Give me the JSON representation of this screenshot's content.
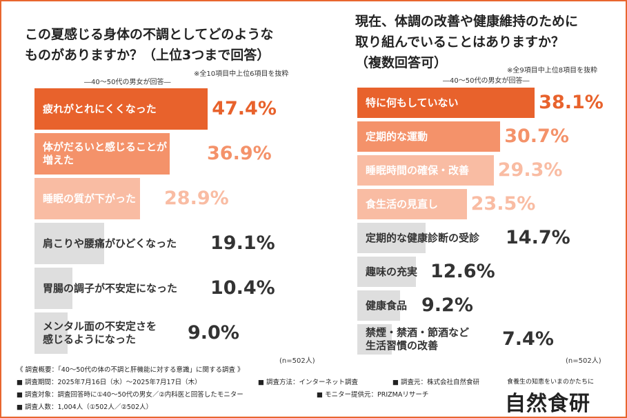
{
  "chart_data": [
    {
      "type": "bar",
      "title": "この夏感じる身体の不調としてどのような\nものがありますか？（上位3つまで回答）",
      "subtitle": "―40～50代の男女が回答―",
      "note": "※全10項目中上位6項目を抜粋",
      "categories": [
        "疲れがとれにくくなった",
        "体がだるいと感じることが\n増えた",
        "睡眠の質が下がった",
        "肩こりや腰痛がひどくなった",
        "胃腸の調子が不安定になった",
        "メンタル面の不安定さを\n感じるようになった"
      ],
      "values": [
        47.4,
        36.9,
        28.9,
        19.1,
        10.4,
        9.0
      ],
      "value_labels": [
        "47.4%",
        "36.9%",
        "28.9%",
        "19.1%",
        "10.4%",
        "9.0%"
      ],
      "colors": [
        "#e8622c",
        "#f4926a",
        "#f9bca3",
        "#dedede",
        "#dedede",
        "#dedede"
      ],
      "sample": "(n=502人)"
    },
    {
      "type": "bar",
      "title": "現在、体調の改善や健康維持のために\n取り組んでいることはありますか？\n（複数回答可）",
      "subtitle": "―40～50代の男女が回答―",
      "note": "※全9項目中上位8項目を抜粋",
      "categories": [
        "特に何もしていない",
        "定期的な運動",
        "睡眠時間の確保・改善",
        "食生活の見直し",
        "定期的な健康診断の受診",
        "趣味の充実",
        "健康食品",
        "禁煙・禁酒・節酒など\n生活習慣の改善"
      ],
      "values": [
        38.1,
        30.7,
        29.3,
        23.5,
        14.7,
        12.6,
        9.2,
        7.4
      ],
      "value_labels": [
        "38.1%",
        "30.7%",
        "29.3%",
        "23.5%",
        "14.7%",
        "12.6%",
        "9.2%",
        "7.4%"
      ],
      "colors": [
        "#e8622c",
        "#f4926a",
        "#f9bca3",
        "#f9bca3",
        "#dedede",
        "#dedede",
        "#dedede",
        "#dedede"
      ],
      "sample": "(n=502人)"
    }
  ],
  "footer": {
    "survey": "《 調査概要：「40～50代の体の不調と肝機能に対する意識」に関する調査 》",
    "period": "■ 調査期間：2025年7月16日（水）～2025年7月17日（木）",
    "method": "■ 調査方法：インターネット調査",
    "organizer": "■ 調査元：株式会社自然食研",
    "target": "■ 調査対象：調査回答時に①40～50代の男女／②内科医と回答したモニター",
    "provider": "■ モニター提供元：PRIZMAリサーチ",
    "count": "■ 調査人数：1,004人（①502人／②502人）"
  },
  "logo": {
    "tagline": "食養生の知恵をいまのかたちに",
    "name": "自然食研"
  },
  "colors": {
    "accent": "#e8662f",
    "dark_text": "#222222",
    "gray_value": "#333333"
  }
}
